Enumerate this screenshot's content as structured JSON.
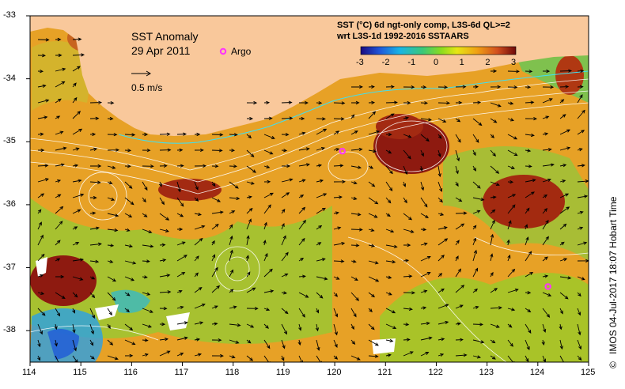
{
  "map": {
    "title_line1": "SST Anomaly",
    "title_line2": "29 Apr 2011",
    "argo_label": "Argo",
    "vector_scale_label": "0.5 m/s",
    "colorbar_title_line1": "SST (°C) 6d ngt-only comp, L3S-6d QL>=2",
    "colorbar_title_line2": "wrt L3S-1d 1992-2016 SSTAARS",
    "colorbar_ticks": [
      "-3",
      "-2",
      "-1",
      "0",
      "1",
      "2",
      "3"
    ],
    "colorbar_range": [
      -3,
      3
    ],
    "x_ticks": [
      "114",
      "115",
      "116",
      "117",
      "118",
      "119",
      "120",
      "121",
      "122",
      "123",
      "124",
      "125"
    ],
    "y_ticks": [
      "-33",
      "-34",
      "-35",
      "-36",
      "-37",
      "-38"
    ],
    "lon_range": [
      114,
      125
    ],
    "lat_range": [
      -33,
      -38.5
    ],
    "credit": "IMOS 04-Jul-2017 18:07 Hobart Time",
    "copyright_symbol": "©",
    "argo_floats": [
      {
        "lon": 120.15,
        "lat": -35.15
      },
      {
        "lon": 124.2,
        "lat": -37.3
      }
    ],
    "colors": {
      "land": "#f9c89b",
      "argo": "#ff33ff",
      "background_anomaly": "#e8a020"
    }
  }
}
